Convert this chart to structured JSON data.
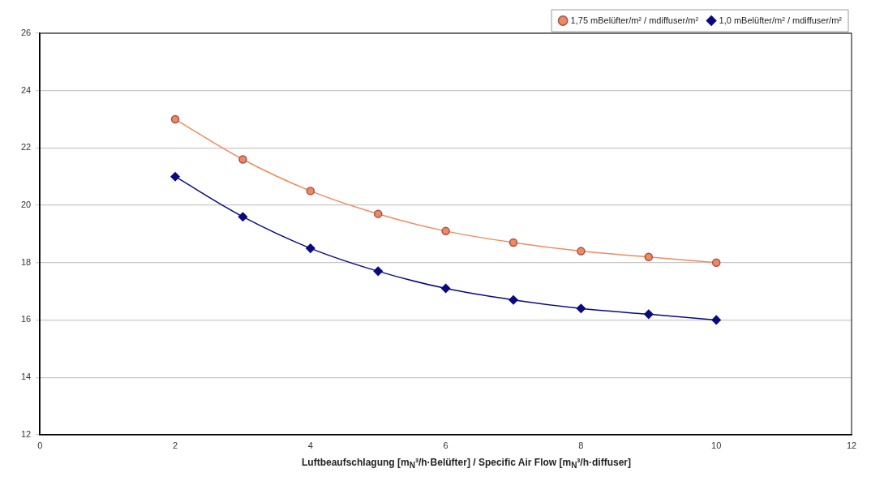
{
  "chart_data": {
    "type": "line",
    "xlabel": "Luftbeaufschlagung  [m$_{N}$³/h·Belüfter] / Specific Air Flow [m$_{N}$³/h·diffuser]",
    "x": [
      2,
      3,
      4,
      5,
      6,
      7,
      8,
      9,
      10
    ],
    "series": [
      {
        "name": "1,75 mBelüfter/m² / mdiffuser/m²",
        "color": "#f08a5d",
        "marker": "circle",
        "values": [
          23,
          21.6,
          20.5,
          19.7,
          19.1,
          18.7,
          18.4,
          18.2,
          18.0
        ]
      },
      {
        "name": "1,0 mBelüfter/m² / mdiffuser/m²",
        "color": "#0a0a80",
        "marker": "diamond",
        "values": [
          21,
          19.6,
          18.5,
          17.7,
          17.1,
          16.7,
          16.4,
          16.2,
          16.0
        ]
      }
    ],
    "xlim": [
      0,
      12
    ],
    "xticks": [
      0,
      2,
      4,
      6,
      8,
      10,
      12
    ],
    "ylim": [
      12,
      26
    ],
    "yticks": [
      12,
      14,
      16,
      18,
      20,
      22,
      24,
      26
    ],
    "grid": "y",
    "legend": "top right"
  }
}
